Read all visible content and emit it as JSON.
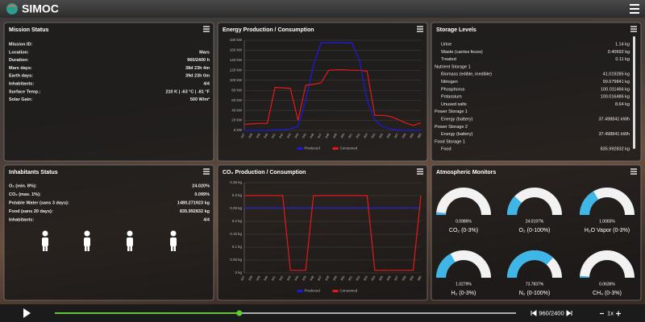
{
  "header": {
    "title": "SIMOC"
  },
  "mission_status": {
    "title": "Mission Status",
    "rows": [
      {
        "label": "Mission ID:"
      },
      {
        "label": "Location:",
        "value": "Mars"
      },
      {
        "label": "Duration:",
        "value": "960/2400 h"
      },
      {
        "label": "Mars days:",
        "value": "38d 23h 4m"
      },
      {
        "label": "Earth days:",
        "value": "39d 23h 0m"
      },
      {
        "label": "Inhabitants:",
        "value": "4/4"
      },
      {
        "label": "Surface Temp.:",
        "value": "210 K | -63 °C | -81 °F"
      },
      {
        "label": "Solar Gain:",
        "value": "500 W/m²"
      }
    ]
  },
  "storage_levels": {
    "title": "Storage Levels",
    "rows": [
      {
        "label": "Urine",
        "value": "1.14 kg"
      },
      {
        "label": "Waste (carries feces)",
        "value": "0.40692 kg"
      },
      {
        "label": "Treated",
        "value": "0.11 kg"
      },
      {
        "heading": "Nutrient Storage 1"
      },
      {
        "label": "Biomass (edible, inedible)",
        "value": "41.019285 kg"
      },
      {
        "label": "Nitrogen",
        "value": "99.679841 kg"
      },
      {
        "label": "Phosphorus",
        "value": "100.011466 kg"
      },
      {
        "label": "Potassium",
        "value": "100.016486 kg"
      },
      {
        "label": "Unused salts",
        "value": "8.64 kg"
      },
      {
        "heading": "Power Storage 1"
      },
      {
        "label": "Energy (battery)",
        "value": "37.498841 kWh"
      },
      {
        "heading": "Power Storage 2"
      },
      {
        "label": "Energy (battery)",
        "value": "37.498841 kWh"
      },
      {
        "heading": "Food Storage 1"
      },
      {
        "label": "Food",
        "value": "835.992832 kg"
      }
    ]
  },
  "inhabitants_status": {
    "title": "Inhabitants Status",
    "rows": [
      {
        "label": "O₂ (min. 8%):",
        "value": "24.020%"
      },
      {
        "label": "CO₂ (max. 1%):",
        "value": "0.099%"
      },
      {
        "label": "Potable Water (sans 3 days):",
        "value": "1480.271923 kg"
      },
      {
        "label": "Food (sans 20 days):",
        "value": "835.992832 kg"
      },
      {
        "label": "Inhabitants:",
        "value": "4/4"
      }
    ]
  },
  "chart_data": [
    {
      "type": "line",
      "title": "Energy Production / Consumption",
      "categories": [
        "937",
        "938",
        "939",
        "940",
        "941",
        "942",
        "943",
        "944",
        "945",
        "946",
        "947",
        "948",
        "949",
        "950",
        "951",
        "952",
        "953",
        "954",
        "955",
        "956",
        "957",
        "958",
        "959",
        "960"
      ],
      "series": [
        {
          "name": "Produced",
          "color": "#1a1ae6",
          "values": [
            0,
            0,
            0,
            0,
            1,
            1,
            3,
            8,
            60,
            130,
            175,
            175,
            175,
            175,
            175,
            140,
            60,
            20,
            8,
            3,
            1,
            0,
            0,
            0
          ]
        },
        {
          "name": "Consumed",
          "color": "#e61a1a",
          "values": [
            12,
            13,
            14,
            14,
            86,
            85,
            84,
            20,
            90,
            92,
            95,
            120,
            121,
            121,
            120,
            120,
            118,
            30,
            30,
            28,
            22,
            15,
            10,
            15
          ]
        }
      ],
      "ylim": [
        0,
        180
      ],
      "yticks": [
        {
          "value": 0,
          "label": "0 kW"
        },
        {
          "value": 20,
          "label": "20 kW"
        },
        {
          "value": 40,
          "label": "40 kW"
        },
        {
          "value": 60,
          "label": "60 kW"
        },
        {
          "value": 80,
          "label": "80 kW"
        },
        {
          "value": 100,
          "label": "100 kW"
        },
        {
          "value": 120,
          "label": "120 kW"
        },
        {
          "value": 140,
          "label": "140 kW"
        },
        {
          "value": 160,
          "label": "160 kW"
        },
        {
          "value": 180,
          "label": "180 kW"
        }
      ],
      "grid": true
    },
    {
      "type": "line",
      "title": "CO₂ Production / Consumption",
      "categories": [
        "937",
        "938",
        "939",
        "940",
        "941",
        "942",
        "943",
        "944",
        "945",
        "946",
        "947",
        "948",
        "949",
        "950",
        "951",
        "952",
        "953",
        "954",
        "955",
        "956",
        "957",
        "958",
        "959",
        "960"
      ],
      "series": [
        {
          "name": "Produced",
          "color": "#1a1ae6",
          "values": [
            0.253,
            0.253,
            0.253,
            0.253,
            0.253,
            0.253,
            0.253,
            0.253,
            0.253,
            0.253,
            0.253,
            0.253,
            0.253,
            0.253,
            0.253,
            0.253,
            0.253,
            0.253,
            0.253,
            0.253,
            0.253,
            0.253,
            0.253,
            0.253
          ]
        },
        {
          "name": "Consumed",
          "color": "#e61a1a",
          "values": [
            0.3,
            0.3,
            0.3,
            0.3,
            0.3,
            0.3,
            0.01,
            0.01,
            0.01,
            0.3,
            0.3,
            0.3,
            0.3,
            0.3,
            0.3,
            0.3,
            0.3,
            0.01,
            0.01,
            0.01,
            0.01,
            0.01,
            0.01,
            0.3
          ]
        }
      ],
      "ylim": [
        0,
        0.35
      ],
      "yticks": [
        {
          "value": 0,
          "label": "0 kg"
        },
        {
          "value": 0.05,
          "label": "0.05 kg"
        },
        {
          "value": 0.1,
          "label": "0.1 kg"
        },
        {
          "value": 0.15,
          "label": "0.15 kg"
        },
        {
          "value": 0.2,
          "label": "0.2 kg"
        },
        {
          "value": 0.25,
          "label": "0.25 kg"
        },
        {
          "value": 0.3,
          "label": "0.3 kg"
        },
        {
          "value": 0.35,
          "label": "0.35 kg"
        }
      ],
      "grid": true
    },
    {
      "type": "gauge",
      "title": "Atmospheric Monitors",
      "categories": [
        "CO₂ (0-3%)",
        "O₂ (0-100%)",
        "H₂O Vapor (0-3%)",
        "H₂ (0-3%)",
        "N₂ (0-100%)",
        "CH₄ (0-3%)"
      ],
      "values": [
        0.0986,
        24.0197,
        1.0065,
        1.0279,
        73.7837,
        0.0636
      ],
      "value_labels": [
        "0.0986%",
        "24.0197%",
        "1.0065%",
        "1.0279%",
        "73.7837%",
        "0.0636%"
      ],
      "ranges": [
        [
          0,
          3
        ],
        [
          0,
          100
        ],
        [
          0,
          3
        ],
        [
          0,
          3
        ],
        [
          0,
          100
        ],
        [
          0,
          3
        ]
      ],
      "color": "#3fb6e8"
    }
  ],
  "playback": {
    "step_label": "960/2400",
    "speed": "1x",
    "progress": {
      "current": 960,
      "total": 2400
    }
  }
}
